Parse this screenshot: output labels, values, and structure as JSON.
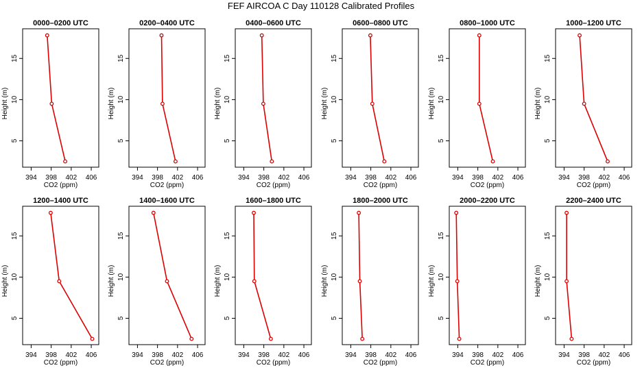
{
  "figure": {
    "title": "FEF AIRCOA C  Day 110128  Calibrated Profiles"
  },
  "chart_data": [
    {
      "type": "line",
      "title": "0000–0200 UTC",
      "xlabel": "CO2 (ppm)",
      "ylabel": "Height (m)",
      "xlim": [
        392.3,
        407.5
      ],
      "ylim": [
        1.8,
        18.6
      ],
      "xticks": [
        394,
        398,
        402,
        406
      ],
      "yticks": [
        5,
        10,
        15
      ],
      "color": "#dd0000",
      "series": [
        {
          "x": [
            397.2,
            398.1,
            400.8
          ],
          "y": [
            17.8,
            9.5,
            2.5
          ]
        }
      ]
    },
    {
      "type": "line",
      "title": "0200–0400 UTC",
      "xlabel": "CO2 (ppm)",
      "ylabel": "Height (m)",
      "xlim": [
        392.3,
        407.5
      ],
      "ylim": [
        1.8,
        18.6
      ],
      "xticks": [
        394,
        398,
        402,
        406
      ],
      "yticks": [
        5,
        10,
        15
      ],
      "color": "#dd0000",
      "series": [
        {
          "x": [
            398.8,
            399.0,
            401.6
          ],
          "y": [
            17.8,
            9.5,
            2.5
          ]
        }
      ]
    },
    {
      "type": "line",
      "title": "0400–0600 UTC",
      "xlabel": "CO2 (ppm)",
      "ylabel": "Height (m)",
      "xlim": [
        392.3,
        407.5
      ],
      "ylim": [
        1.8,
        18.6
      ],
      "xticks": [
        394,
        398,
        402,
        406
      ],
      "yticks": [
        5,
        10,
        15
      ],
      "color": "#dd0000",
      "series": [
        {
          "x": [
            397.6,
            397.9,
            399.6
          ],
          "y": [
            17.8,
            9.5,
            2.5
          ]
        }
      ]
    },
    {
      "type": "line",
      "title": "0600–0800 UTC",
      "xlabel": "CO2 (ppm)",
      "ylabel": "Height (m)",
      "xlim": [
        392.3,
        407.5
      ],
      "ylim": [
        1.8,
        18.6
      ],
      "xticks": [
        394,
        398,
        402,
        406
      ],
      "yticks": [
        5,
        10,
        15
      ],
      "color": "#dd0000",
      "series": [
        {
          "x": [
            397.9,
            398.3,
            400.7
          ],
          "y": [
            17.8,
            9.5,
            2.5
          ]
        }
      ]
    },
    {
      "type": "line",
      "title": "0800–1000 UTC",
      "xlabel": "CO2 (ppm)",
      "ylabel": "Height (m)",
      "xlim": [
        392.3,
        407.5
      ],
      "ylim": [
        1.8,
        18.6
      ],
      "xticks": [
        394,
        398,
        402,
        406
      ],
      "yticks": [
        5,
        10,
        15
      ],
      "color": "#dd0000",
      "series": [
        {
          "x": [
            398.3,
            398.3,
            401.0
          ],
          "y": [
            17.8,
            9.5,
            2.5
          ]
        }
      ]
    },
    {
      "type": "line",
      "title": "1000–1200 UTC",
      "xlabel": "CO2 (ppm)",
      "ylabel": "Height (m)",
      "xlim": [
        392.3,
        407.5
      ],
      "ylim": [
        1.8,
        18.6
      ],
      "xticks": [
        394,
        398,
        402,
        406
      ],
      "yticks": [
        5,
        10,
        15
      ],
      "color": "#dd0000",
      "series": [
        {
          "x": [
            397.1,
            398.0,
            402.7
          ],
          "y": [
            17.8,
            9.5,
            2.5
          ]
        }
      ]
    },
    {
      "type": "line",
      "title": "1200–1400 UTC",
      "xlabel": "CO2 (ppm)",
      "ylabel": "Height (m)",
      "xlim": [
        392.3,
        407.5
      ],
      "ylim": [
        1.8,
        18.6
      ],
      "xticks": [
        394,
        398,
        402,
        406
      ],
      "yticks": [
        5,
        10,
        15
      ],
      "color": "#dd0000",
      "series": [
        {
          "x": [
            397.9,
            399.6,
            406.2
          ],
          "y": [
            17.8,
            9.5,
            2.5
          ]
        }
      ]
    },
    {
      "type": "line",
      "title": "1400–1600 UTC",
      "xlabel": "CO2 (ppm)",
      "ylabel": "Height (m)",
      "xlim": [
        392.3,
        407.5
      ],
      "ylim": [
        1.8,
        18.6
      ],
      "xticks": [
        394,
        398,
        402,
        406
      ],
      "yticks": [
        5,
        10,
        15
      ],
      "color": "#dd0000",
      "series": [
        {
          "x": [
            397.2,
            399.9,
            404.8
          ],
          "y": [
            17.8,
            9.5,
            2.5
          ]
        }
      ]
    },
    {
      "type": "line",
      "title": "1600–1800 UTC",
      "xlabel": "CO2 (ppm)",
      "ylabel": "Height (m)",
      "xlim": [
        392.3,
        407.5
      ],
      "ylim": [
        1.8,
        18.6
      ],
      "xticks": [
        394,
        398,
        402,
        406
      ],
      "yticks": [
        5,
        10,
        15
      ],
      "color": "#dd0000",
      "series": [
        {
          "x": [
            396.0,
            396.1,
            399.4
          ],
          "y": [
            17.8,
            9.5,
            2.5
          ]
        }
      ]
    },
    {
      "type": "line",
      "title": "1800–2000 UTC",
      "xlabel": "CO2 (ppm)",
      "ylabel": "Height (m)",
      "xlim": [
        392.3,
        407.5
      ],
      "ylim": [
        1.8,
        18.6
      ],
      "xticks": [
        394,
        398,
        402,
        406
      ],
      "yticks": [
        5,
        10,
        15
      ],
      "color": "#dd0000",
      "series": [
        {
          "x": [
            395.6,
            395.8,
            396.3
          ],
          "y": [
            17.8,
            9.5,
            2.5
          ]
        }
      ]
    },
    {
      "type": "line",
      "title": "2000–2200 UTC",
      "xlabel": "CO2 (ppm)",
      "ylabel": "Height (m)",
      "xlim": [
        392.3,
        407.5
      ],
      "ylim": [
        1.8,
        18.6
      ],
      "xticks": [
        394,
        398,
        402,
        406
      ],
      "yticks": [
        5,
        10,
        15
      ],
      "color": "#dd0000",
      "series": [
        {
          "x": [
            393.7,
            393.9,
            394.3
          ],
          "y": [
            17.8,
            9.5,
            2.5
          ]
        }
      ]
    },
    {
      "type": "line",
      "title": "2200–2400 UTC",
      "xlabel": "CO2 (ppm)",
      "ylabel": "Height (m)",
      "xlim": [
        392.3,
        407.5
      ],
      "ylim": [
        1.8,
        18.6
      ],
      "xticks": [
        394,
        398,
        402,
        406
      ],
      "yticks": [
        5,
        10,
        15
      ],
      "color": "#dd0000",
      "series": [
        {
          "x": [
            394.5,
            394.5,
            395.5
          ],
          "y": [
            17.8,
            9.5,
            2.5
          ]
        }
      ]
    }
  ]
}
